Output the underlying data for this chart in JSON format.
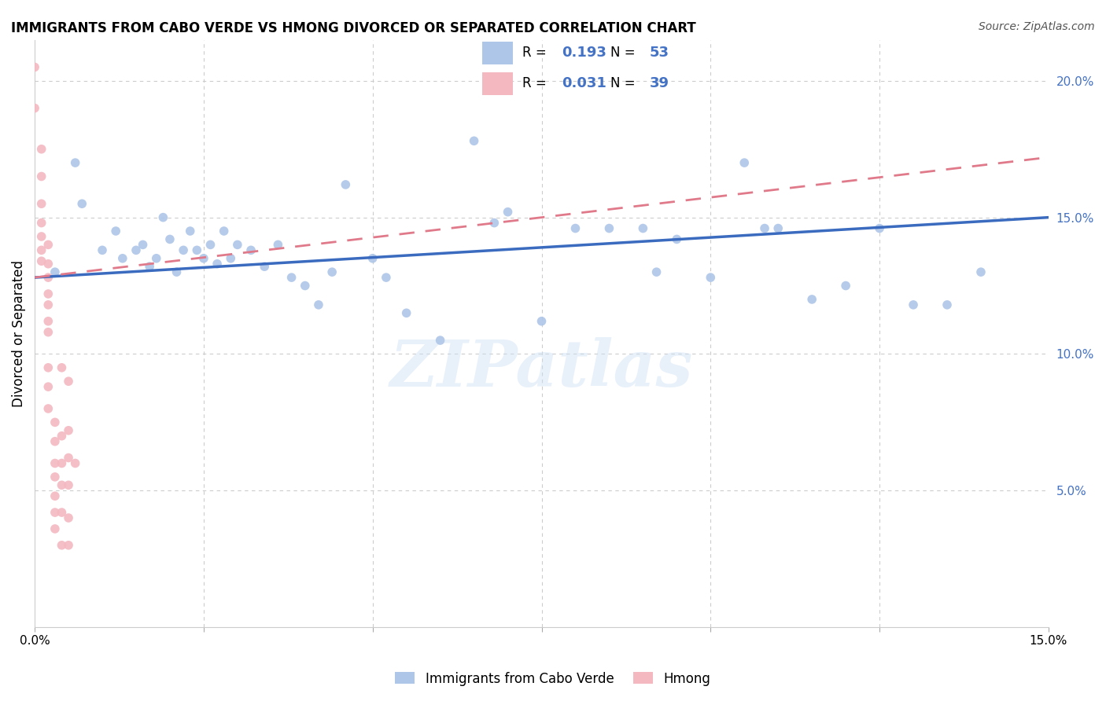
{
  "title": "IMMIGRANTS FROM CABO VERDE VS HMONG DIVORCED OR SEPARATED CORRELATION CHART",
  "source": "Source: ZipAtlas.com",
  "ylabel": "Divorced or Separated",
  "x_min": 0.0,
  "x_max": 0.15,
  "y_min": 0.0,
  "y_max": 0.215,
  "cabo_verde_color": "#aec6e8",
  "hmong_color": "#f4b8c1",
  "cabo_verde_line_color": "#3a6bbf",
  "hmong_line_color": "#e07a8a",
  "cabo_verde_R": 0.193,
  "cabo_verde_N": 53,
  "hmong_R": 0.031,
  "hmong_N": 39,
  "legend_text_color": "#4472c4",
  "right_axis_color": "#4472c4",
  "watermark": "ZIPatlas",
  "background_color": "#ffffff",
  "grid_color": "#cccccc",
  "cabo_verde_line_x0": 0.0,
  "cabo_verde_line_y0": 0.128,
  "cabo_verde_line_x1": 0.15,
  "cabo_verde_line_y1": 0.15,
  "hmong_line_x0": 0.0,
  "hmong_line_y0": 0.128,
  "hmong_line_x1": 0.15,
  "hmong_line_y1": 0.172,
  "cabo_verde_x": [
    0.003,
    0.006,
    0.007,
    0.01,
    0.012,
    0.013,
    0.015,
    0.016,
    0.017,
    0.018,
    0.019,
    0.02,
    0.021,
    0.022,
    0.023,
    0.024,
    0.025,
    0.026,
    0.027,
    0.028,
    0.029,
    0.03,
    0.032,
    0.034,
    0.036,
    0.038,
    0.04,
    0.042,
    0.044,
    0.046,
    0.05,
    0.052,
    0.055,
    0.06,
    0.065,
    0.068,
    0.07,
    0.075,
    0.08,
    0.085,
    0.09,
    0.092,
    0.095,
    0.1,
    0.105,
    0.108,
    0.11,
    0.115,
    0.12,
    0.125,
    0.13,
    0.135,
    0.14
  ],
  "cabo_verde_y": [
    0.13,
    0.17,
    0.155,
    0.138,
    0.145,
    0.135,
    0.138,
    0.14,
    0.132,
    0.135,
    0.15,
    0.142,
    0.13,
    0.138,
    0.145,
    0.138,
    0.135,
    0.14,
    0.133,
    0.145,
    0.135,
    0.14,
    0.138,
    0.132,
    0.14,
    0.128,
    0.125,
    0.118,
    0.13,
    0.162,
    0.135,
    0.128,
    0.115,
    0.105,
    0.178,
    0.148,
    0.152,
    0.112,
    0.146,
    0.146,
    0.146,
    0.13,
    0.142,
    0.128,
    0.17,
    0.146,
    0.146,
    0.12,
    0.125,
    0.146,
    0.118,
    0.118,
    0.13
  ],
  "hmong_x": [
    0.0,
    0.0,
    0.001,
    0.001,
    0.001,
    0.001,
    0.001,
    0.001,
    0.001,
    0.002,
    0.002,
    0.002,
    0.002,
    0.002,
    0.002,
    0.002,
    0.002,
    0.002,
    0.002,
    0.003,
    0.003,
    0.003,
    0.003,
    0.003,
    0.003,
    0.003,
    0.004,
    0.004,
    0.004,
    0.004,
    0.004,
    0.004,
    0.005,
    0.005,
    0.005,
    0.005,
    0.005,
    0.005,
    0.006
  ],
  "hmong_y": [
    0.205,
    0.19,
    0.175,
    0.165,
    0.155,
    0.148,
    0.143,
    0.138,
    0.134,
    0.14,
    0.133,
    0.128,
    0.122,
    0.118,
    0.112,
    0.108,
    0.095,
    0.088,
    0.08,
    0.075,
    0.068,
    0.06,
    0.055,
    0.048,
    0.042,
    0.036,
    0.095,
    0.07,
    0.06,
    0.052,
    0.042,
    0.03,
    0.09,
    0.072,
    0.062,
    0.052,
    0.04,
    0.03,
    0.06
  ]
}
